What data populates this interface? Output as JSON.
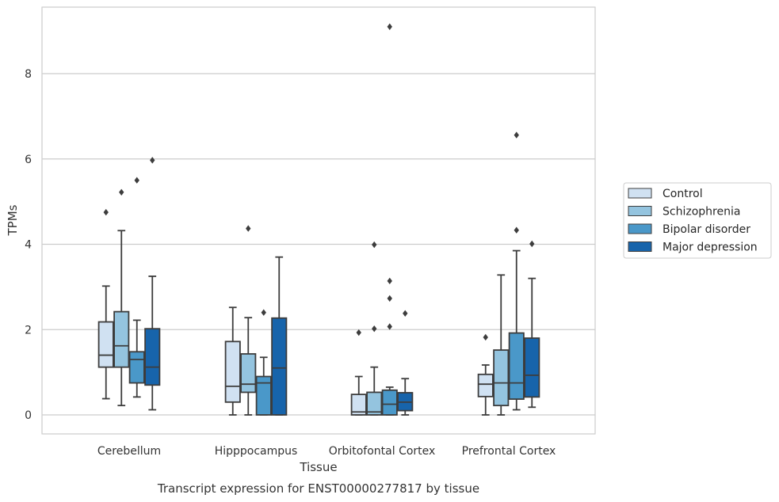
{
  "chart_data": {
    "type": "boxplot",
    "title": "",
    "caption": "Transcript expression for ENST00000277817 by tissue",
    "xlabel": "Tissue",
    "ylabel": "TPMs",
    "ylim": [
      -0.45,
      9.65
    ],
    "yticks": [
      0,
      2,
      4,
      6,
      8
    ],
    "grid": "horizontal",
    "legend_position": "right",
    "categories": [
      "Cerebellum",
      "Hipppocampus",
      "Orbitofontal Cortex",
      "Prefrontal Cortex"
    ],
    "series": [
      {
        "name": "Control",
        "color": "#d0e1f2",
        "boxes": [
          {
            "whislo": 0.38,
            "q1": 1.12,
            "med": 1.4,
            "q3": 2.18,
            "whishi": 3.02,
            "fliers": [
              4.75
            ]
          },
          {
            "whislo": 0.0,
            "q1": 0.3,
            "med": 0.67,
            "q3": 1.72,
            "whishi": 2.52,
            "fliers": []
          },
          {
            "whislo": 0.0,
            "q1": 0.0,
            "med": 0.07,
            "q3": 0.48,
            "whishi": 0.9,
            "fliers": [
              1.93
            ]
          },
          {
            "whislo": 0.0,
            "q1": 0.43,
            "med": 0.72,
            "q3": 0.95,
            "whishi": 1.17,
            "fliers": [
              1.82
            ]
          }
        ]
      },
      {
        "name": "Schizophrenia",
        "color": "#94c4df",
        "boxes": [
          {
            "whislo": 0.22,
            "q1": 1.12,
            "med": 1.62,
            "q3": 2.42,
            "whishi": 4.32,
            "fliers": [
              5.22
            ]
          },
          {
            "whislo": 0.0,
            "q1": 0.53,
            "med": 0.72,
            "q3": 1.43,
            "whishi": 2.28,
            "fliers": [
              4.37
            ]
          },
          {
            "whislo": 0.0,
            "q1": 0.0,
            "med": 0.07,
            "q3": 0.53,
            "whishi": 1.12,
            "fliers": [
              2.02,
              3.99
            ]
          },
          {
            "whislo": 0.0,
            "q1": 0.22,
            "med": 0.75,
            "q3": 1.52,
            "whishi": 3.28,
            "fliers": []
          }
        ]
      },
      {
        "name": "Bipolar disorder",
        "color": "#4a98c9",
        "boxes": [
          {
            "whislo": 0.42,
            "q1": 0.75,
            "med": 1.3,
            "q3": 1.48,
            "whishi": 2.22,
            "fliers": [
              5.5
            ]
          },
          {
            "whislo": 0.0,
            "q1": 0.0,
            "med": 0.75,
            "q3": 0.9,
            "whishi": 1.35,
            "fliers": [
              2.4
            ]
          },
          {
            "whislo": 0.0,
            "q1": 0.0,
            "med": 0.25,
            "q3": 0.58,
            "whishi": 0.65,
            "fliers": [
              2.07,
              2.73,
              3.14,
              9.1
            ]
          },
          {
            "whislo": 0.12,
            "q1": 0.37,
            "med": 0.75,
            "q3": 1.92,
            "whishi": 3.85,
            "fliers": [
              4.33,
              6.56
            ]
          }
        ]
      },
      {
        "name": "Major depression",
        "color": "#1764ab",
        "boxes": [
          {
            "whislo": 0.12,
            "q1": 0.7,
            "med": 1.12,
            "q3": 2.02,
            "whishi": 3.25,
            "fliers": [
              5.97
            ]
          },
          {
            "whislo": 0.0,
            "q1": 0.0,
            "med": 1.1,
            "q3": 2.27,
            "whishi": 3.7,
            "fliers": []
          },
          {
            "whislo": 0.0,
            "q1": 0.1,
            "med": 0.3,
            "q3": 0.52,
            "whishi": 0.85,
            "fliers": [
              2.38
            ]
          },
          {
            "whislo": 0.18,
            "q1": 0.42,
            "med": 0.93,
            "q3": 1.8,
            "whishi": 3.2,
            "fliers": [
              4.01
            ]
          }
        ]
      }
    ]
  }
}
